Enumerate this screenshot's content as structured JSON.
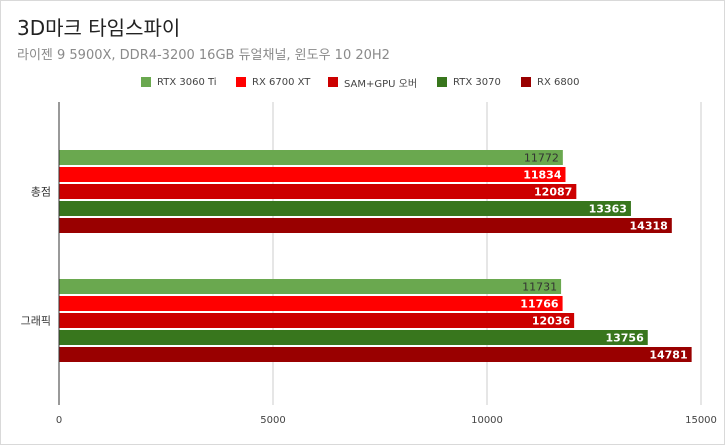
{
  "title": "3D마크 타임스파이",
  "subtitle": "라이젠 9 5900X, DDR4-3200 16GB 듀얼채널, 윈도우 10 20H2",
  "chart_data": {
    "type": "bar",
    "orientation": "horizontal",
    "categories": [
      "총점",
      "그래픽"
    ],
    "series": [
      {
        "name": "RTX 3060 Ti",
        "color": "#6aa84f",
        "values": [
          11772,
          11731
        ]
      },
      {
        "name": "RX 6700 XT",
        "color": "#ff0000",
        "values": [
          11834,
          11766
        ]
      },
      {
        "name": "SAM+GPU 오버",
        "color": "#cc0000",
        "values": [
          12087,
          12036
        ]
      },
      {
        "name": "RTX 3070",
        "color": "#38761d",
        "values": [
          13363,
          13756
        ]
      },
      {
        "name": "RX 6800",
        "color": "#990000",
        "values": [
          14318,
          14781
        ]
      }
    ],
    "xlim": [
      0,
      15000
    ],
    "xticks": [
      0,
      5000,
      10000,
      15000
    ],
    "grid": true,
    "legend_position": "top"
  }
}
